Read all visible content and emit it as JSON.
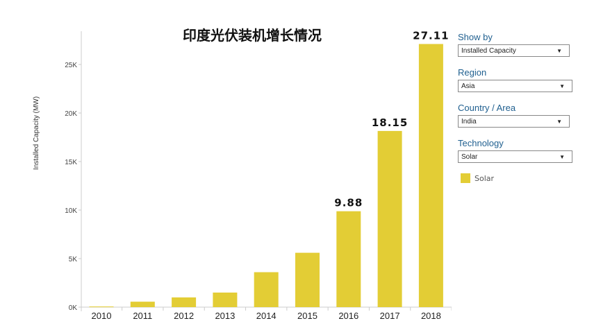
{
  "chart_data": {
    "type": "bar",
    "title": "印度光伏装机增长情况",
    "ylabel": "Installed Capacity (MW)",
    "xlabel": "",
    "categories": [
      "2010",
      "2011",
      "2012",
      "2013",
      "2014",
      "2015",
      "2016",
      "2017",
      "2018"
    ],
    "values": [
      65,
      560,
      1000,
      1500,
      3600,
      5600,
      9880,
      18150,
      27110
    ],
    "data_labels": {
      "6": "9.88",
      "7": "18.15",
      "8": "27.11"
    },
    "yticks": [
      0,
      5000,
      10000,
      15000,
      20000,
      25000
    ],
    "ytick_labels": [
      "0K",
      "5K",
      "10K",
      "15K",
      "20K",
      "25K"
    ],
    "ylim": [
      0,
      28500
    ],
    "grid": false,
    "bar_color": "#e3cd35",
    "legend": {
      "entries": [
        "Solar"
      ],
      "placement": "right"
    }
  },
  "filters": [
    {
      "label": "Show by",
      "value": "Installed Capacity"
    },
    {
      "label": "Region",
      "value": "Asia"
    },
    {
      "label": "Country / Area",
      "value": "India"
    },
    {
      "label": "Technology",
      "value": "Solar"
    }
  ],
  "legend_label": "Solar"
}
